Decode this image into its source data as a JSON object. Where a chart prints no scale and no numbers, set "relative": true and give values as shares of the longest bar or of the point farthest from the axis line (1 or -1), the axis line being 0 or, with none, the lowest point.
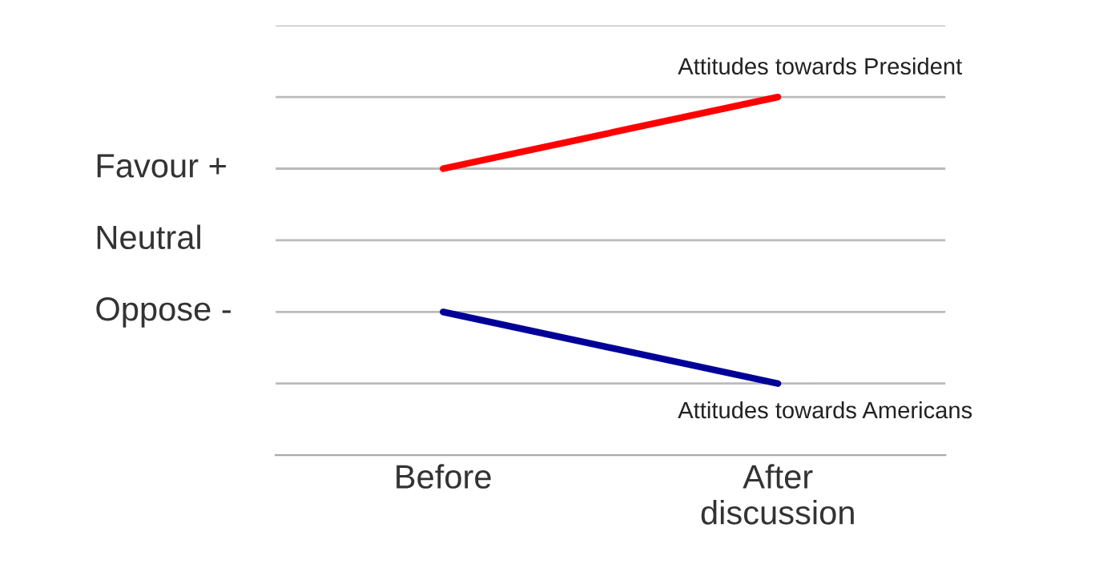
{
  "chart_data": {
    "type": "line",
    "relative": true,
    "categories": [
      "Before",
      "After\ndiscussion"
    ],
    "series": [
      {
        "name": "Attitudes towards President",
        "color": "#ff0000",
        "values": [
          0.8,
          1
        ]
      },
      {
        "name": "Attitudes towards Americans",
        "color": "#000099",
        "values": [
          0.4,
          0.2
        ]
      }
    ],
    "ref_lines": [
      {
        "axis": "y",
        "value": 1.2,
        "label": null,
        "color": "#bbbbbb"
      },
      {
        "axis": "y",
        "value": 1,
        "label": null,
        "color": "#bbbbbb"
      },
      {
        "axis": "y",
        "value": 0.8,
        "label": "Favour +",
        "color": "#bbbbbb"
      },
      {
        "axis": "y",
        "value": 0.6,
        "label": "Neutral",
        "color": "#bbbbbb"
      },
      {
        "axis": "y",
        "value": 0.4,
        "label": "Oppose -",
        "color": "#bbbbbb"
      },
      {
        "axis": "y",
        "value": 0.2,
        "label": null,
        "color": "#bbbbbb"
      }
    ],
    "marker": "none",
    "line_style": "solid"
  }
}
